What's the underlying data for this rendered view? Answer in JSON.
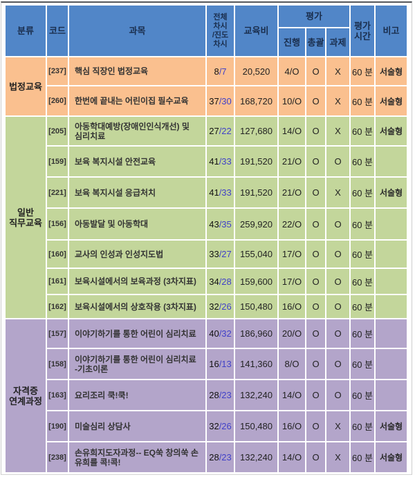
{
  "header": {
    "category": "분류",
    "code": "코드",
    "subject": "과목",
    "sessions": "전체\n차시\n/진도\n차시",
    "fee": "교육비",
    "evaluation": "평가",
    "eval_progress": "진행",
    "eval_overall": "총괄",
    "eval_assignment": "과제",
    "eval_time": "평가\n시간",
    "note": "비고"
  },
  "colors": {
    "header_bg": "#5186C8",
    "header_text": "#1a2e4d",
    "section_legal_bg": "#FAC08F",
    "section_general_bg": "#C3D69B",
    "section_cert_bg": "#B3A5CA",
    "progress_number_blue": "#4040C8"
  },
  "sections": [
    {
      "name": "법정교육",
      "rows": [
        {
          "code": "[237]",
          "subject": "핵심 직장인 법정교육",
          "total_sessions": "8",
          "progress_sessions": "7",
          "fee": "20,520",
          "eval_progress": "4/O",
          "eval_overall": "O",
          "eval_assignment": "X",
          "eval_time": "60 분",
          "note": "서술형"
        },
        {
          "code": "[260]",
          "subject": "한번에 끝내는 어린이집 필수교육",
          "total_sessions": "37",
          "progress_sessions": "30",
          "fee": "168,720",
          "eval_progress": "10/O",
          "eval_overall": "O",
          "eval_assignment": "X",
          "eval_time": "60 분",
          "note": "서술형"
        }
      ]
    },
    {
      "name": "일반\n직무교육",
      "rows": [
        {
          "code": "[205]",
          "subject": "아동학대예방(장애인인식개선) 및\n심리치료",
          "total_sessions": "27",
          "progress_sessions": "22",
          "fee": "127,680",
          "eval_progress": "14/O",
          "eval_overall": "O",
          "eval_assignment": "X",
          "eval_time": "60 분",
          "note": "서술형"
        },
        {
          "code": "[159]",
          "subject": "보육 복지시설 안전교육",
          "total_sessions": "41",
          "progress_sessions": "33",
          "fee": "191,520",
          "eval_progress": "21/O",
          "eval_overall": "O",
          "eval_assignment": "O",
          "eval_time": "60 분",
          "note": ""
        },
        {
          "code": "[221]",
          "subject": "보육 복지시설 응급처치",
          "total_sessions": "41",
          "progress_sessions": "33",
          "fee": "191,520",
          "eval_progress": "21/O",
          "eval_overall": "O",
          "eval_assignment": "X",
          "eval_time": "60 분",
          "note": "서술형"
        },
        {
          "code": "[156]",
          "subject": "아동발달 및 아동학대",
          "total_sessions": "43",
          "progress_sessions": "35",
          "fee": "259,920",
          "eval_progress": "22/O",
          "eval_overall": "O",
          "eval_assignment": "O",
          "eval_time": "60 분",
          "note": ""
        },
        {
          "code": "[160]",
          "subject": "교사의 인성과 인성지도법",
          "total_sessions": "33",
          "progress_sessions": "27",
          "fee": "155,040",
          "eval_progress": "17/O",
          "eval_overall": "O",
          "eval_assignment": "O",
          "eval_time": "60 분",
          "note": ""
        },
        {
          "code": "[161]",
          "subject": "보육시설에서의 보육과정 (3차지표)",
          "total_sessions": "34",
          "progress_sessions": "28",
          "fee": "159,600",
          "eval_progress": "17/O",
          "eval_overall": "O",
          "eval_assignment": "O",
          "eval_time": "60 분",
          "note": ""
        },
        {
          "code": "[162]",
          "subject": "보육시설에서의 상호작용 (3차지표)",
          "total_sessions": "32",
          "progress_sessions": "26",
          "fee": "150,480",
          "eval_progress": "16/O",
          "eval_overall": "O",
          "eval_assignment": "O",
          "eval_time": "60 분",
          "note": ""
        }
      ]
    },
    {
      "name": "자격증\n연계과정",
      "rows": [
        {
          "code": "[157]",
          "subject": "이야기하기를 통한 어린이 심리치료",
          "total_sessions": "40",
          "progress_sessions": "32",
          "fee": "186,960",
          "eval_progress": "20/O",
          "eval_overall": "O",
          "eval_assignment": "O",
          "eval_time": "60 분",
          "note": ""
        },
        {
          "code": "[158]",
          "subject": "이야기하기를 통한 어린이 심리치료\n-기초이론",
          "total_sessions": "16",
          "progress_sessions": "13",
          "fee": "141,360",
          "eval_progress": "8/O",
          "eval_overall": "O",
          "eval_assignment": "O",
          "eval_time": "60 분",
          "note": ""
        },
        {
          "code": "[163]",
          "subject": "요리조리 쿡!쿡!",
          "total_sessions": "28",
          "progress_sessions": "23",
          "fee": "132,240",
          "eval_progress": "14/O",
          "eval_overall": "O",
          "eval_assignment": "O",
          "eval_time": "60 분",
          "note": ""
        },
        {
          "code": "[190]",
          "subject": "미술심리 상담사",
          "total_sessions": "32",
          "progress_sessions": "26",
          "fee": "150,480",
          "eval_progress": "16/O",
          "eval_overall": "O",
          "eval_assignment": "X",
          "eval_time": "60 분",
          "note": "서술형"
        },
        {
          "code": "[238]",
          "subject": "손유희지도자과정-- EQ쑥 창의쑥 손\n유희를 콕!콕!",
          "total_sessions": "28",
          "progress_sessions": "23",
          "fee": "132,240",
          "eval_progress": "14/O",
          "eval_overall": "O",
          "eval_assignment": "X",
          "eval_time": "60 분",
          "note": "서술형"
        }
      ]
    }
  ]
}
